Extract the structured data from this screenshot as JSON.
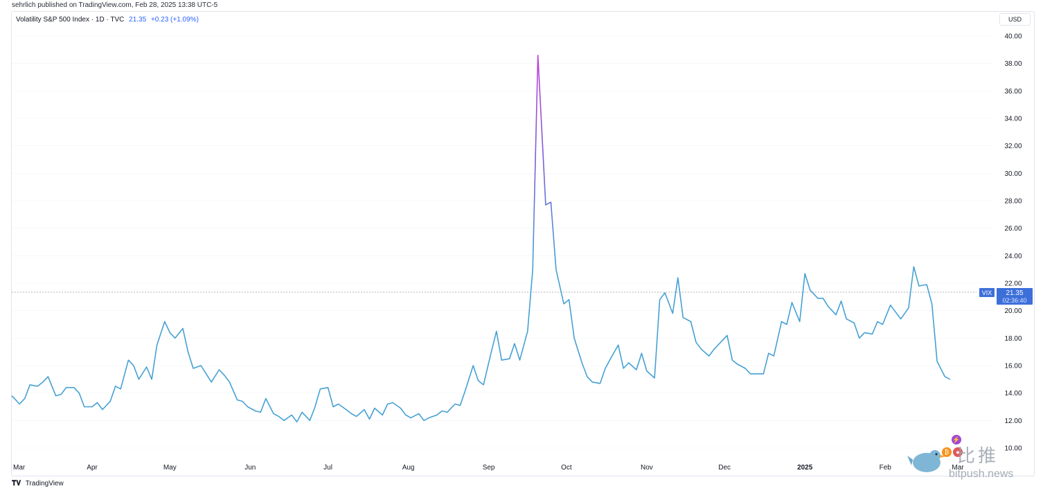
{
  "header": {
    "publisher": "sehrlich published on TradingView.com, Feb 28, 2025 13:38 UTC-5"
  },
  "legend": {
    "name": "Volatility S&P 500 Index · 1D · TVC",
    "last": "21.35",
    "change": "+0.23 (+1.09%)"
  },
  "currency": "USD",
  "price_tag": {
    "symbol": "VIX",
    "value": "21.35",
    "countdown": "02:36:40"
  },
  "footer": {
    "brand": "TradingView"
  },
  "watermark": {
    "text": "比推",
    "site": "bitpush.news"
  },
  "colors": {
    "line": "#44a0d4",
    "spike": "#c040d8",
    "price_tag": "#3d6fd9",
    "grid": "#f0f3fa"
  },
  "icons": [
    "tradingview-logo-icon",
    "lightning-icon",
    "bitcoin-icon",
    "bird-icon"
  ],
  "chart_data": {
    "type": "line",
    "title": "Volatility S&P 500 Index",
    "ylim": [
      9.0,
      41.0
    ],
    "yticks": [
      "10.00",
      "12.00",
      "14.00",
      "16.00",
      "18.00",
      "20.00",
      "22.00",
      "24.00",
      "26.00",
      "28.00",
      "30.00",
      "32.00",
      "34.00",
      "36.00",
      "38.00",
      "40.00"
    ],
    "xtick_labels": [
      "Mar",
      "Apr",
      "May",
      "Jun",
      "Jul",
      "Aug",
      "Sep",
      "Oct",
      "Nov",
      "Dec",
      "2025",
      "Feb",
      "Mar"
    ],
    "xtick_dates": [
      "2024-03-01",
      "2024-04-01",
      "2024-05-01",
      "2024-06-01",
      "2024-07-01",
      "2024-08-01",
      "2024-09-01",
      "2024-10-01",
      "2024-11-01",
      "2024-12-01",
      "2025-01-01",
      "2025-02-01",
      "2025-03-01"
    ],
    "xlim": [
      "2024-03-01",
      "2025-03-01"
    ],
    "series": [
      {
        "values": [
          [
            "2024-03-01",
            13.8
          ],
          [
            "2024-03-04",
            13.2
          ],
          [
            "2024-03-06",
            13.6
          ],
          [
            "2024-03-08",
            14.6
          ],
          [
            "2024-03-11",
            14.5
          ],
          [
            "2024-03-13",
            14.8
          ],
          [
            "2024-03-15",
            15.2
          ],
          [
            "2024-03-18",
            13.8
          ],
          [
            "2024-03-20",
            13.9
          ],
          [
            "2024-03-22",
            14.4
          ],
          [
            "2024-03-25",
            14.4
          ],
          [
            "2024-03-27",
            14.0
          ],
          [
            "2024-03-29",
            13.0
          ],
          [
            "2024-04-01",
            13.0
          ],
          [
            "2024-04-03",
            13.3
          ],
          [
            "2024-04-05",
            12.8
          ],
          [
            "2024-04-08",
            13.4
          ],
          [
            "2024-04-10",
            14.5
          ],
          [
            "2024-04-12",
            14.3
          ],
          [
            "2024-04-15",
            16.4
          ],
          [
            "2024-04-17",
            16.0
          ],
          [
            "2024-04-19",
            15.0
          ],
          [
            "2024-04-22",
            15.9
          ],
          [
            "2024-04-24",
            15.0
          ],
          [
            "2024-04-26",
            17.5
          ],
          [
            "2024-04-29",
            19.2
          ],
          [
            "2024-05-01",
            18.4
          ],
          [
            "2024-05-03",
            18.0
          ],
          [
            "2024-05-06",
            18.7
          ],
          [
            "2024-05-08",
            17.0
          ],
          [
            "2024-05-10",
            15.8
          ],
          [
            "2024-05-13",
            16.0
          ],
          [
            "2024-05-15",
            15.4
          ],
          [
            "2024-05-17",
            14.8
          ],
          [
            "2024-05-20",
            15.7
          ],
          [
            "2024-05-22",
            15.3
          ],
          [
            "2024-05-24",
            14.8
          ],
          [
            "2024-05-27",
            13.5
          ],
          [
            "2024-05-29",
            13.4
          ],
          [
            "2024-05-31",
            13.0
          ],
          [
            "2024-06-03",
            12.7
          ],
          [
            "2024-06-05",
            12.6
          ],
          [
            "2024-06-07",
            13.6
          ],
          [
            "2024-06-10",
            12.5
          ],
          [
            "2024-06-12",
            12.3
          ],
          [
            "2024-06-14",
            12.0
          ],
          [
            "2024-06-17",
            12.4
          ],
          [
            "2024-06-19",
            11.9
          ],
          [
            "2024-06-21",
            12.6
          ],
          [
            "2024-06-24",
            12.0
          ],
          [
            "2024-06-26",
            13.0
          ],
          [
            "2024-06-28",
            14.3
          ],
          [
            "2024-07-01",
            14.4
          ],
          [
            "2024-07-03",
            13.0
          ],
          [
            "2024-07-05",
            13.2
          ],
          [
            "2024-07-08",
            12.8
          ],
          [
            "2024-07-10",
            12.5
          ],
          [
            "2024-07-12",
            12.3
          ],
          [
            "2024-07-15",
            12.8
          ],
          [
            "2024-07-17",
            12.1
          ],
          [
            "2024-07-19",
            12.9
          ],
          [
            "2024-07-22",
            12.4
          ],
          [
            "2024-07-24",
            13.2
          ],
          [
            "2024-07-26",
            13.3
          ],
          [
            "2024-07-29",
            12.9
          ],
          [
            "2024-07-31",
            12.4
          ],
          [
            "2024-08-02",
            12.2
          ],
          [
            "2024-08-05",
            12.5
          ],
          [
            "2024-08-07",
            12.0
          ],
          [
            "2024-08-09",
            12.2
          ],
          [
            "2024-08-12",
            12.4
          ],
          [
            "2024-08-14",
            12.7
          ],
          [
            "2024-08-16",
            12.6
          ],
          [
            "2024-08-19",
            13.2
          ],
          [
            "2024-08-21",
            13.1
          ],
          [
            "2024-08-23",
            14.2
          ],
          [
            "2024-08-26",
            16.0
          ],
          [
            "2024-08-28",
            14.9
          ],
          [
            "2024-08-30",
            14.6
          ],
          [
            "2024-09-02",
            17.0
          ],
          [
            "2024-09-04",
            18.5
          ],
          [
            "2024-09-06",
            16.4
          ],
          [
            "2024-09-09",
            16.5
          ],
          [
            "2024-09-11",
            17.6
          ],
          [
            "2024-09-13",
            16.4
          ],
          [
            "2024-09-16",
            18.5
          ],
          [
            "2024-09-18",
            23.0
          ],
          [
            "2024-09-20",
            38.6
          ],
          [
            "2024-09-23",
            27.7
          ],
          [
            "2024-09-25",
            27.9
          ],
          [
            "2024-09-27",
            23.0
          ],
          [
            "2024-09-30",
            20.5
          ],
          [
            "2024-10-02",
            20.8
          ],
          [
            "2024-10-04",
            18.0
          ],
          [
            "2024-10-07",
            16.2
          ],
          [
            "2024-10-09",
            15.2
          ],
          [
            "2024-10-11",
            14.8
          ],
          [
            "2024-10-14",
            14.7
          ],
          [
            "2024-10-16",
            15.8
          ],
          [
            "2024-10-18",
            16.5
          ],
          [
            "2024-10-21",
            17.5
          ],
          [
            "2024-10-23",
            15.8
          ],
          [
            "2024-10-25",
            16.2
          ],
          [
            "2024-10-28",
            15.7
          ],
          [
            "2024-10-30",
            16.9
          ],
          [
            "2024-11-01",
            15.6
          ],
          [
            "2024-11-04",
            15.1
          ],
          [
            "2024-11-06",
            20.8
          ],
          [
            "2024-11-08",
            21.3
          ],
          [
            "2024-11-11",
            19.8
          ],
          [
            "2024-11-13",
            22.4
          ],
          [
            "2024-11-15",
            19.5
          ],
          [
            "2024-11-18",
            19.2
          ],
          [
            "2024-11-20",
            17.7
          ],
          [
            "2024-11-22",
            17.2
          ],
          [
            "2024-11-25",
            16.7
          ],
          [
            "2024-11-27",
            17.2
          ],
          [
            "2024-11-29",
            17.6
          ],
          [
            "2024-12-02",
            18.2
          ],
          [
            "2024-12-04",
            16.4
          ],
          [
            "2024-12-06",
            16.1
          ],
          [
            "2024-12-09",
            15.8
          ],
          [
            "2024-12-11",
            15.4
          ],
          [
            "2024-12-13",
            15.4
          ],
          [
            "2024-12-16",
            15.4
          ],
          [
            "2024-12-18",
            16.9
          ],
          [
            "2024-12-20",
            16.7
          ],
          [
            "2024-12-23",
            19.2
          ],
          [
            "2024-12-25",
            19.0
          ],
          [
            "2024-12-27",
            20.6
          ],
          [
            "2024-12-30",
            19.2
          ],
          [
            "2025-01-01",
            22.7
          ],
          [
            "2025-01-03",
            21.5
          ],
          [
            "2025-01-06",
            20.9
          ],
          [
            "2025-01-08",
            20.9
          ],
          [
            "2025-01-10",
            20.3
          ],
          [
            "2025-01-13",
            19.7
          ],
          [
            "2025-01-15",
            20.7
          ],
          [
            "2025-01-17",
            19.4
          ],
          [
            "2025-01-20",
            19.1
          ],
          [
            "2025-01-22",
            18.0
          ],
          [
            "2025-01-24",
            18.4
          ],
          [
            "2025-01-27",
            18.3
          ],
          [
            "2025-01-29",
            19.2
          ],
          [
            "2025-01-31",
            19.0
          ],
          [
            "2025-02-03",
            20.4
          ],
          [
            "2025-02-05",
            19.9
          ],
          [
            "2025-02-07",
            19.4
          ],
          [
            "2025-02-10",
            20.2
          ],
          [
            "2025-02-12",
            23.2
          ],
          [
            "2025-02-14",
            21.8
          ],
          [
            "2025-02-17",
            21.9
          ],
          [
            "2025-02-19",
            20.5
          ],
          [
            "2025-02-21",
            16.3
          ],
          [
            "2025-02-24",
            15.2
          ],
          [
            "2025-02-26",
            15.0
          ]
        ]
      }
    ]
  }
}
